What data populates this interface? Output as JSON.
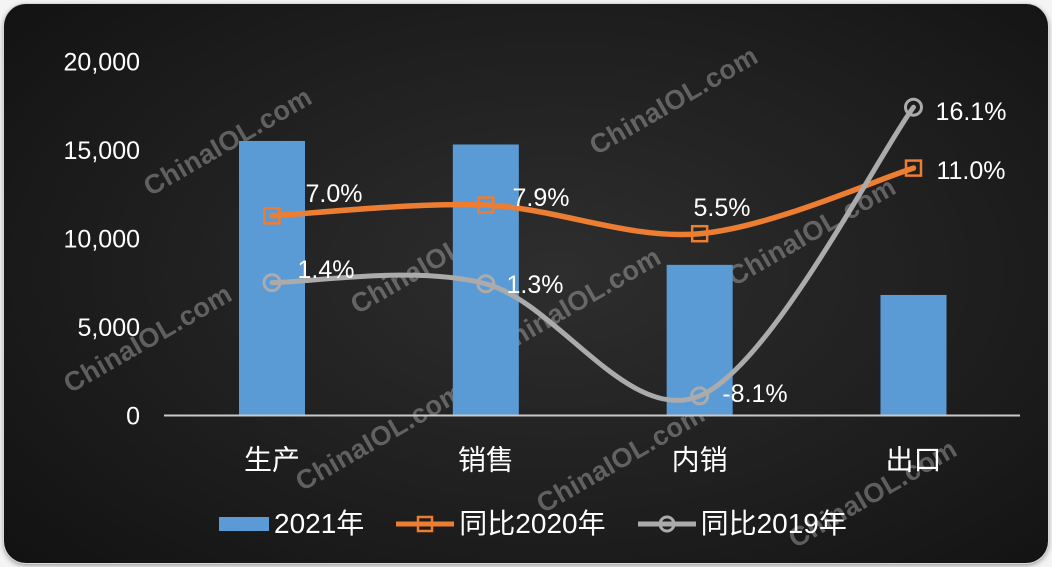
{
  "watermark": {
    "text": "ChinaIOL.com"
  },
  "chart_data": {
    "type": "combo-bar-line",
    "categories": [
      "生产",
      "销售",
      "内销",
      "出口"
    ],
    "bar_series": {
      "name": "2021年",
      "values": [
        15500,
        15300,
        8500,
        6800
      ],
      "color": "#5B9BD5"
    },
    "line_series": [
      {
        "name": "同比2020年",
        "values_pct": [
          7.0,
          7.9,
          5.5,
          11.0
        ],
        "labels": [
          "7.0%",
          "7.9%",
          "5.5%",
          "11.0%"
        ],
        "color": "#ED7D31",
        "marker": "square"
      },
      {
        "name": "同比2019年",
        "values_pct": [
          1.4,
          1.3,
          -8.1,
          16.1
        ],
        "labels": [
          "1.4%",
          "1.3%",
          "-8.1%",
          "16.1%"
        ],
        "color": "#ABABAB",
        "marker": "circle"
      }
    ],
    "y_axis": {
      "ticks": [
        "0",
        "5,000",
        "10,000",
        "15,000",
        "20,000"
      ],
      "tick_values": [
        0,
        5000,
        10000,
        15000,
        20000
      ],
      "range": [
        0,
        20000
      ]
    },
    "grid": "off",
    "legend_position": "bottom",
    "legend": [
      "2021年",
      "同比2020年",
      "同比2019年"
    ]
  },
  "colors": {
    "bar": "#5B9BD5",
    "line_2020": "#ED7D31",
    "line_2019": "#ABABAB",
    "axis": "#C9C9C9",
    "text": "#FFFFFF",
    "card_background": "#0B0B0B"
  }
}
